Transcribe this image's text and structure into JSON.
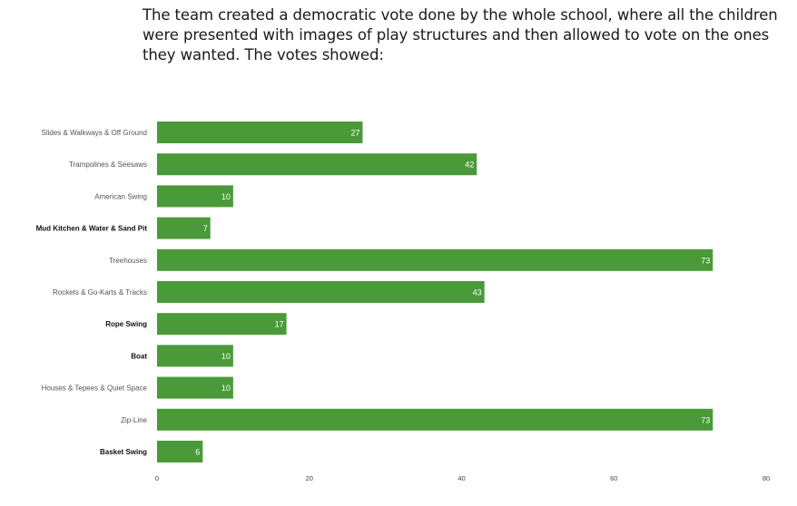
{
  "intro": {
    "text": "The team created a democratic vote done by the whole school, where all the children were presented with images of play structures and then allowed to vote on the ones they wanted. The votes showed:"
  },
  "chart_data": {
    "type": "bar",
    "orientation": "horizontal",
    "categories": [
      "Slides & Walkways & Off Ground",
      "Trampolines & Seesaws",
      "American Swing",
      "Mud Kitchen & Water & Sand Pit",
      "Treehouses",
      "Rockets & Go-Karts & Tracks",
      "Rope Swing",
      "Boat",
      "Houses & Tepees & Quiet Space",
      "Zip-Line",
      "Basket Swing"
    ],
    "values": [
      27,
      42,
      10,
      7,
      73,
      43,
      17,
      10,
      10,
      73,
      6
    ],
    "value_labels": [
      "27",
      "42",
      "10",
      "7",
      "73",
      "43",
      "17",
      "10",
      "10",
      "73",
      "6"
    ],
    "xlim": [
      0,
      80
    ],
    "xticks": [
      0,
      20,
      40,
      60,
      80
    ],
    "xtick_labels": [
      "0",
      "20",
      "40",
      "60",
      "80"
    ],
    "bold_categories": [
      3,
      6,
      7,
      10
    ],
    "title": "",
    "xlabel": "",
    "ylabel": "",
    "grid": false,
    "bar_color": "#4a9a3a",
    "label_color": "#ffffff"
  }
}
